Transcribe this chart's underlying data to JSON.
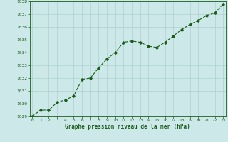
{
  "x": [
    0,
    1,
    2,
    3,
    4,
    5,
    6,
    7,
    8,
    9,
    10,
    11,
    12,
    13,
    14,
    15,
    16,
    17,
    18,
    19,
    20,
    21,
    22,
    23
  ],
  "y": [
    1029.0,
    1029.5,
    1029.5,
    1030.1,
    1030.3,
    1030.6,
    1031.9,
    1032.0,
    1032.8,
    1033.5,
    1034.0,
    1034.8,
    1034.9,
    1034.8,
    1034.5,
    1034.4,
    1034.8,
    1035.3,
    1035.8,
    1036.2,
    1036.5,
    1036.9,
    1037.1,
    1037.8
  ],
  "ylim": [
    1029,
    1038
  ],
  "yticks": [
    1029,
    1030,
    1031,
    1032,
    1033,
    1034,
    1035,
    1036,
    1037,
    1038
  ],
  "xticks": [
    0,
    1,
    2,
    3,
    4,
    5,
    6,
    7,
    8,
    9,
    10,
    11,
    12,
    13,
    14,
    15,
    16,
    17,
    18,
    19,
    20,
    21,
    22,
    23
  ],
  "xlabel": "Graphe pression niveau de la mer (hPa)",
  "line_color": "#1a5e1a",
  "marker": "D",
  "marker_size": 1.8,
  "bg_color": "#cce8e8",
  "grid_color": "#b0d0d0",
  "xlabel_color": "#1a5e1a",
  "tick_color": "#1a5e1a",
  "spine_color": "#1a5e1a",
  "xlim": [
    -0.3,
    23.3
  ]
}
